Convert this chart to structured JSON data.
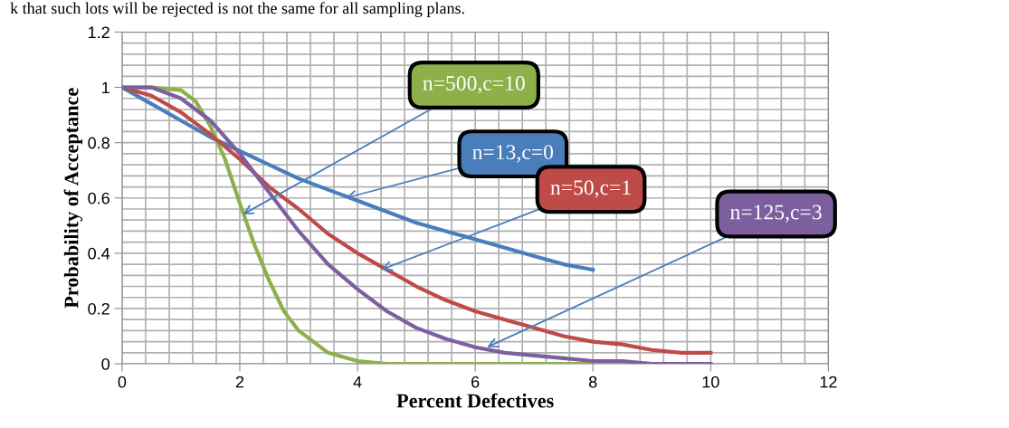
{
  "chart_data": {
    "type": "line",
    "xlabel": "Percent Defectives",
    "ylabel": "Probability of Acceptance",
    "xlim": [
      0,
      12
    ],
    "xticks": [
      0,
      2,
      4,
      6,
      8,
      10,
      12
    ],
    "ylim": [
      0,
      1.2
    ],
    "yticks": [
      0,
      0.2,
      0.4,
      0.6,
      0.8,
      1,
      1.2
    ],
    "grid": true,
    "marker": "none",
    "line_style": "solid",
    "series": [
      {
        "color": "#8db04a",
        "x": [
          0,
          0.5,
          1,
          1.25,
          1.5,
          1.75,
          2,
          2.25,
          2.5,
          2.75,
          3,
          3.5,
          4,
          4.5,
          5,
          6,
          7,
          8,
          9,
          10
        ],
        "values": [
          1,
          1,
          0.99,
          0.95,
          0.86,
          0.74,
          0.58,
          0.43,
          0.3,
          0.19,
          0.12,
          0.04,
          0.01,
          0,
          0,
          0,
          0,
          0,
          0,
          0
        ]
      },
      {
        "color": "#4a7ebb",
        "x": [
          0,
          0.5,
          1,
          1.5,
          2,
          2.5,
          3,
          3.5,
          4,
          4.5,
          5,
          5.5,
          6,
          6.5,
          7,
          7.5,
          8
        ],
        "values": [
          1,
          0.94,
          0.88,
          0.82,
          0.77,
          0.72,
          0.67,
          0.63,
          0.59,
          0.55,
          0.51,
          0.48,
          0.45,
          0.42,
          0.39,
          0.36,
          0.34
        ]
      },
      {
        "color": "#be4b48",
        "x": [
          0,
          0.5,
          1,
          1.5,
          2,
          2.5,
          3,
          3.5,
          4,
          4.5,
          5,
          5.5,
          6,
          6.5,
          7,
          7.5,
          8,
          8.5,
          9,
          9.5,
          10
        ],
        "values": [
          1,
          0.97,
          0.91,
          0.83,
          0.74,
          0.64,
          0.56,
          0.47,
          0.4,
          0.34,
          0.28,
          0.23,
          0.19,
          0.16,
          0.13,
          0.1,
          0.08,
          0.07,
          0.05,
          0.04,
          0.04
        ]
      },
      {
        "color": "#7d5fa0",
        "x": [
          0,
          0.5,
          1,
          1.5,
          2,
          2.5,
          3,
          3.5,
          4,
          4.5,
          5,
          5.5,
          6,
          6.5,
          7,
          7.5,
          8,
          8.5,
          9,
          9.5,
          10
        ],
        "values": [
          1,
          1,
          0.96,
          0.88,
          0.76,
          0.62,
          0.48,
          0.36,
          0.27,
          0.19,
          0.13,
          0.09,
          0.06,
          0.04,
          0.03,
          0.02,
          0.01,
          0.01,
          0,
          0,
          0
        ]
      }
    ],
    "annotations": [
      {
        "text": "n=500,c=10",
        "x": 2.05,
        "y": 0.54
      },
      {
        "text": "n=13,c=0",
        "x": 3.8,
        "y": 0.6
      },
      {
        "text": "n=50,c=1",
        "x": 4.4,
        "y": 0.34
      },
      {
        "text": "n=125,c=3",
        "x": 6.2,
        "y": 0.06
      },
      "k that such lots will be rejected is not the same for all sampling plans."
    ]
  }
}
